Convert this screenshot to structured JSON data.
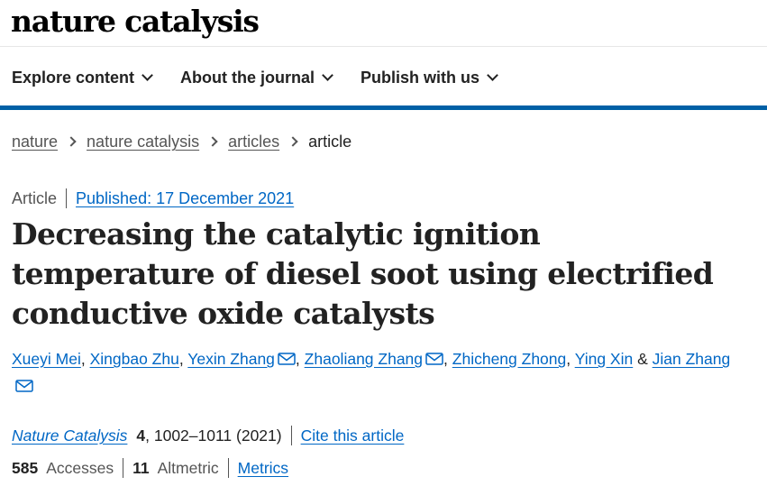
{
  "header": {
    "logo": "nature catalysis"
  },
  "nav": {
    "items": [
      {
        "label": "Explore content"
      },
      {
        "label": "About the journal"
      },
      {
        "label": "Publish with us"
      }
    ]
  },
  "breadcrumb": {
    "items": [
      "nature",
      "nature catalysis",
      "articles"
    ],
    "current": "article"
  },
  "article": {
    "type": "Article",
    "published": "Published: 17 December 2021",
    "title": "Decreasing the catalytic ignition temperature of diesel soot using electrified conductive oxide catalysts",
    "authors": [
      {
        "name": "Xueyi Mei",
        "mail": false
      },
      {
        "name": "Xingbao Zhu",
        "mail": false
      },
      {
        "name": "Yexin Zhang",
        "mail": true
      },
      {
        "name": "Zhaoliang Zhang",
        "mail": true
      },
      {
        "name": "Zhicheng Zhong",
        "mail": false
      },
      {
        "name": "Ying Xin",
        "mail": false
      },
      {
        "name": "Jian Zhang",
        "mail": true
      }
    ],
    "authors_joiner": "&",
    "comma": ","
  },
  "citation": {
    "journal": "Nature Catalysis",
    "volume": "4",
    "pages_year": ", 1002–1011 (2021)",
    "cite_label": "Cite this article"
  },
  "metrics": {
    "accesses_count": "585",
    "accesses_label": "Accesses",
    "altmetric_count": "11",
    "altmetric_label": "Altmetric",
    "metrics_link": "Metrics"
  },
  "colors": {
    "accent": "#0060a6",
    "link": "#0067c5"
  }
}
